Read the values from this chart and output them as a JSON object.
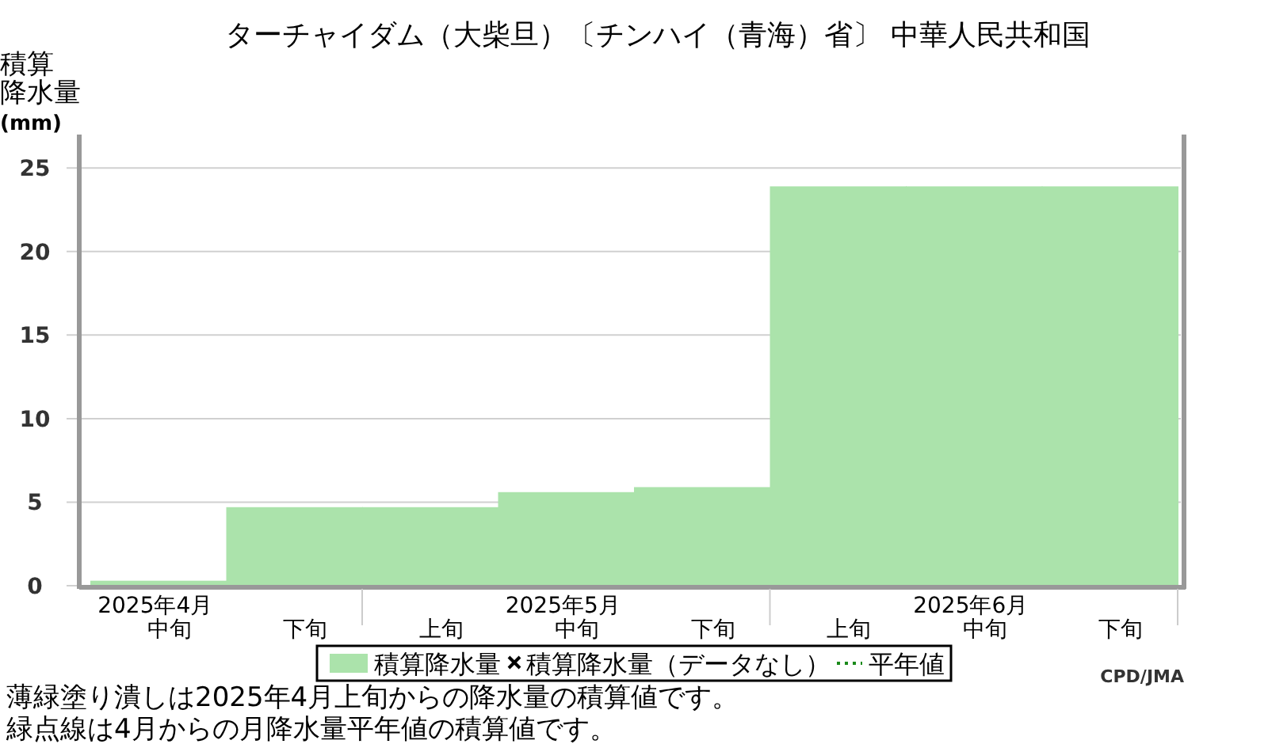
{
  "chart_data": {
    "type": "bar",
    "title": "ターチャイダム（大柴旦）〔チンハイ（青海）省〕 中華人民共和国",
    "ylabel": "積算降水量(mm)",
    "categories": [
      "中旬",
      "下旬",
      "上旬",
      "中旬",
      "下旬",
      "上旬",
      "中旬",
      "下旬"
    ],
    "series": [
      {
        "name": "積算降水量",
        "color": "#abe3ab",
        "values": [
          0.3,
          4.7,
          4.7,
          5.6,
          5.9,
          23.9,
          23.9,
          23.9
        ]
      },
      {
        "name": "積算降水量（データなし）",
        "type": "scatter",
        "marker": "cross",
        "color": "#000000",
        "values": [
          null,
          null,
          null,
          null,
          null,
          null,
          null,
          null
        ]
      },
      {
        "name": "平年値",
        "type": "line",
        "line_style": "dotted",
        "color": "#1a8a1a",
        "values": [
          null,
          null,
          null,
          null,
          null,
          null,
          null,
          null
        ]
      }
    ],
    "ylim": [
      0,
      27
    ],
    "yticks": [
      0,
      5,
      10,
      15,
      20,
      25
    ],
    "grid": "y",
    "legend": "bottom",
    "annotations": [
      "2025年4月",
      "2025年5月",
      "2025年6月",
      "薄緑塗り潰しは2025年4月上旬からの降水量の積算値です。",
      "緑点線は4月からの月降水量平年値の積算値です。",
      "CPD/JMA"
    ]
  }
}
